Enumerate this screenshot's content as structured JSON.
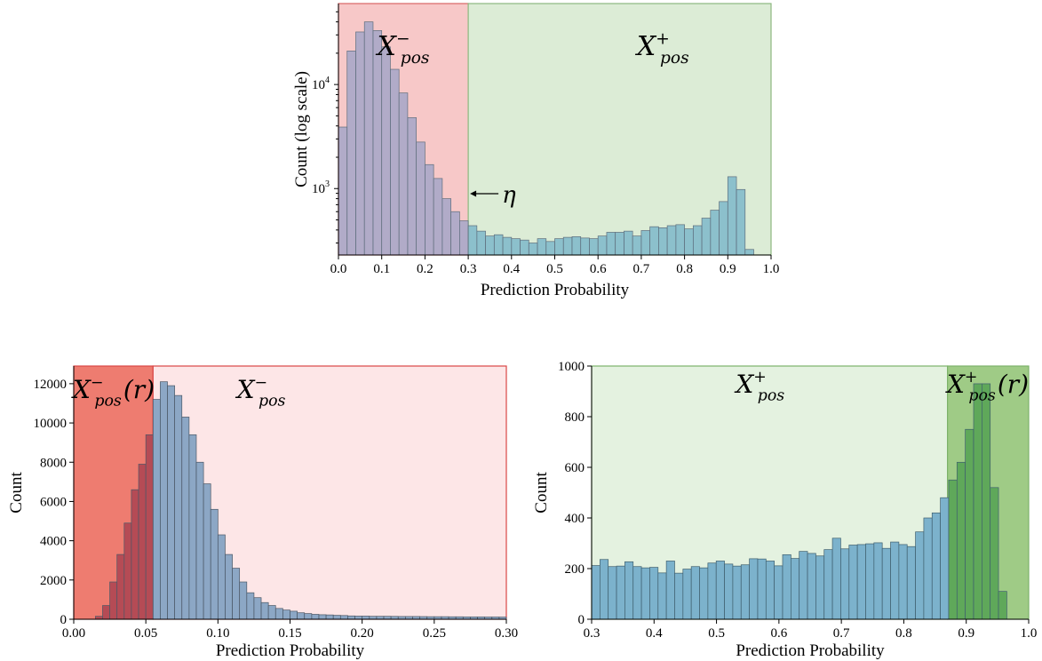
{
  "chart_data": [
    {
      "type": "bar",
      "ylabel": "Count (log scale)",
      "xlabel": "Prediction Probability",
      "yscale": "log",
      "xlim": [
        0.0,
        1.0
      ],
      "ylim": [
        230,
        60000
      ],
      "xticks": [
        "0.0",
        "0.1",
        "0.2",
        "0.3",
        "0.4",
        "0.5",
        "0.6",
        "0.7",
        "0.8",
        "0.9",
        "1.0"
      ],
      "yticks": [
        {
          "value": 1000,
          "base": "10",
          "exp": "3"
        },
        {
          "value": 10000,
          "base": "10",
          "exp": "4"
        }
      ],
      "bin_start": 0.0,
      "bin_width": 0.02,
      "values": [
        3900,
        21000,
        32000,
        40000,
        33000,
        23000,
        14000,
        8300,
        4800,
        2800,
        1700,
        1250,
        800,
        600,
        490,
        440,
        390,
        350,
        360,
        340,
        330,
        320,
        300,
        330,
        310,
        330,
        340,
        345,
        335,
        330,
        350,
        380,
        380,
        390,
        350,
        395,
        430,
        420,
        440,
        450,
        410,
        440,
        520,
        620,
        750,
        1300,
        980,
        260
      ],
      "regions": [
        {
          "range": [
            0.0,
            0.3
          ],
          "label": "X",
          "sub": "pos",
          "sup": "−",
          "color": "#f7c8c8"
        },
        {
          "range": [
            0.3,
            1.0
          ],
          "label": "X",
          "sub": "pos",
          "sup": "+",
          "color": "#dcecd6"
        }
      ],
      "annotation": {
        "text": "η",
        "x": 0.3
      }
    },
    {
      "type": "bar",
      "ylabel": "Count",
      "xlabel": "Prediction Probability",
      "xlim": [
        0.0,
        0.3
      ],
      "ylim": [
        0,
        12900
      ],
      "xticks": [
        "0.00",
        "0.05",
        "0.10",
        "0.15",
        "0.20",
        "0.25",
        "0.30"
      ],
      "yticks": [
        "0",
        "2000",
        "4000",
        "6000",
        "8000",
        "10000",
        "12000"
      ],
      "bin_start": 0.0,
      "bin_width": 0.005,
      "values": [
        0,
        0,
        0,
        0,
        0,
        0,
        0,
        0,
        0,
        0,
        0,
        0,
        0,
        0,
        0,
        0,
        0,
        0,
        0,
        0,
        0,
        0,
        0,
        0,
        0,
        0,
        0,
        0,
        0,
        0,
        0,
        0,
        0,
        0,
        0,
        0,
        0,
        0,
        0,
        0,
        0,
        0,
        0,
        0,
        0,
        0,
        0,
        0,
        0,
        0,
        0,
        0,
        0,
        0,
        0,
        0,
        0,
        0,
        0,
        0
      ],
      "values_note": "",
      "bars": [
        [
          0.015,
          150
        ],
        [
          0.02,
          700
        ],
        [
          0.025,
          1900
        ],
        [
          0.03,
          3300
        ],
        [
          0.035,
          4900
        ],
        [
          0.04,
          6600
        ],
        [
          0.045,
          7900
        ],
        [
          0.05,
          9400
        ],
        [
          0.055,
          11200
        ],
        [
          0.06,
          12100
        ],
        [
          0.065,
          11900
        ],
        [
          0.07,
          11400
        ],
        [
          0.075,
          10300
        ],
        [
          0.08,
          9400
        ],
        [
          0.085,
          8000
        ],
        [
          0.09,
          6900
        ],
        [
          0.095,
          5600
        ],
        [
          0.1,
          4300
        ],
        [
          0.105,
          3300
        ],
        [
          0.11,
          2600
        ],
        [
          0.115,
          1900
        ],
        [
          0.12,
          1350
        ],
        [
          0.125,
          1100
        ],
        [
          0.13,
          850
        ],
        [
          0.135,
          700
        ],
        [
          0.14,
          550
        ],
        [
          0.145,
          470
        ],
        [
          0.15,
          410
        ],
        [
          0.155,
          330
        ],
        [
          0.16,
          290
        ],
        [
          0.165,
          250
        ],
        [
          0.17,
          230
        ],
        [
          0.175,
          220
        ],
        [
          0.18,
          200
        ],
        [
          0.185,
          190
        ],
        [
          0.19,
          170
        ],
        [
          0.195,
          160
        ],
        [
          0.2,
          160
        ],
        [
          0.205,
          150
        ],
        [
          0.21,
          150
        ],
        [
          0.215,
          150
        ],
        [
          0.22,
          145
        ],
        [
          0.225,
          140
        ],
        [
          0.23,
          140
        ],
        [
          0.235,
          140
        ],
        [
          0.24,
          135
        ],
        [
          0.245,
          130
        ],
        [
          0.25,
          130
        ],
        [
          0.255,
          130
        ],
        [
          0.26,
          125
        ],
        [
          0.265,
          125
        ],
        [
          0.27,
          120
        ],
        [
          0.275,
          120
        ],
        [
          0.28,
          120
        ],
        [
          0.285,
          115
        ],
        [
          0.29,
          115
        ],
        [
          0.295,
          110
        ]
      ],
      "regions": [
        {
          "range": [
            0.0,
            0.055
          ],
          "label": "X",
          "sub": "pos",
          "sup": "−",
          "suffix": "(r)",
          "color": "#ee7c70"
        },
        {
          "range": [
            0.055,
            0.3
          ],
          "label": "X",
          "sub": "pos",
          "sup": "−",
          "color": "#fde6e7"
        }
      ]
    },
    {
      "type": "bar",
      "ylabel": "Count",
      "xlabel": "Prediction Probability",
      "xlim": [
        0.3,
        1.0
      ],
      "ylim": [
        0,
        1000
      ],
      "xticks": [
        "0.3",
        "0.4",
        "0.5",
        "0.6",
        "0.7",
        "0.8",
        "0.9",
        "1.0"
      ],
      "yticks": [
        "0",
        "200",
        "400",
        "600",
        "800",
        "1000"
      ],
      "bin_start": 0.3,
      "bin_width": 0.0133,
      "values": [
        212,
        236,
        208,
        210,
        227,
        208,
        203,
        205,
        183,
        230,
        182,
        198,
        208,
        203,
        222,
        230,
        218,
        210,
        215,
        239,
        238,
        230,
        211,
        255,
        240,
        268,
        260,
        250,
        275,
        320,
        278,
        293,
        295,
        298,
        302,
        280,
        305,
        295,
        287,
        345,
        400,
        420,
        480,
        550,
        620,
        750,
        930,
        930,
        520,
        110
      ],
      "regions": [
        {
          "range": [
            0.3,
            0.87
          ],
          "label": "X",
          "sub": "pos",
          "sup": "+",
          "color": "#e4f2e0"
        },
        {
          "range": [
            0.87,
            1.0
          ],
          "label": "X",
          "sub": "pos",
          "sup": "+",
          "suffix": "(r)",
          "color": "#9fcb86"
        }
      ]
    }
  ]
}
